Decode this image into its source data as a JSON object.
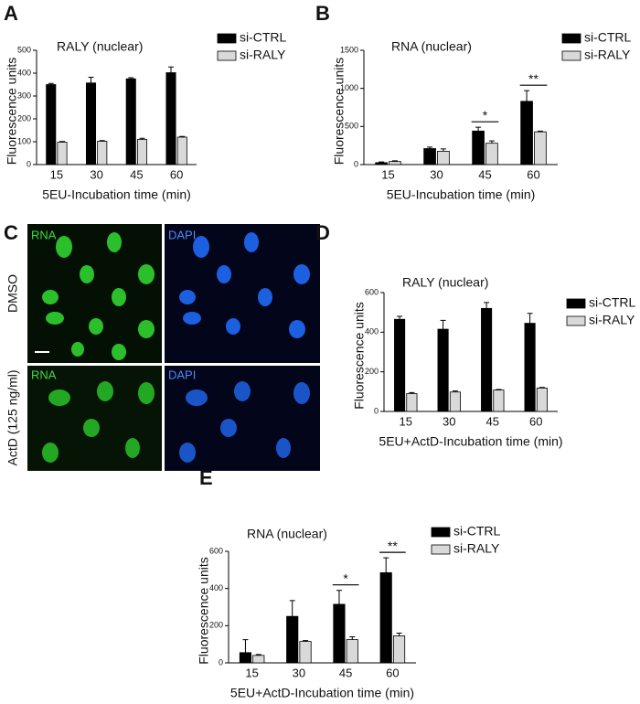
{
  "chart_data": [
    {
      "type": "bar",
      "panel": "A",
      "title": "RALY (nuclear)",
      "ylabel": "Fluorescence units",
      "xlabel": "5EU-Incubation time (min)",
      "categories": [
        "15",
        "30",
        "45",
        "60"
      ],
      "series": [
        {
          "name": "si-CTRL",
          "color": "#000000",
          "values": [
            350,
            357,
            375,
            402
          ],
          "errors": [
            5,
            25,
            5,
            25
          ]
        },
        {
          "name": "si-RALY",
          "color": "#d9d9d9",
          "values": [
            98,
            102,
            110,
            120
          ],
          "errors": [
            3,
            3,
            5,
            3
          ]
        }
      ],
      "ylim": [
        0,
        500
      ],
      "yticks": [
        0,
        100,
        200,
        300,
        400,
        500
      ],
      "annotations": []
    },
    {
      "type": "bar",
      "panel": "B",
      "title": "RNA (nuclear)",
      "ylabel": "Fluorescence units",
      "xlabel": "5EU-Incubation time (min)",
      "categories": [
        "15",
        "30",
        "45",
        "60"
      ],
      "series": [
        {
          "name": "si-CTRL",
          "color": "#000000",
          "values": [
            25,
            210,
            440,
            830
          ],
          "errors": [
            10,
            20,
            50,
            140
          ]
        },
        {
          "name": "si-RALY",
          "color": "#d9d9d9",
          "values": [
            40,
            175,
            280,
            430
          ],
          "errors": [
            10,
            30,
            30,
            10
          ]
        }
      ],
      "ylim": [
        0,
        1500
      ],
      "yticks": [
        0,
        500,
        1000,
        1500
      ],
      "annotations": [
        {
          "category": "45",
          "text": "*"
        },
        {
          "category": "60",
          "text": "**"
        }
      ]
    },
    {
      "type": "bar",
      "panel": "D",
      "title": "RALY (nuclear)",
      "ylabel": "Fluorescence units",
      "xlabel": "5EU+ActD-Incubation time (min)",
      "categories": [
        "15",
        "30",
        "45",
        "60"
      ],
      "series": [
        {
          "name": "si-CTRL",
          "color": "#000000",
          "values": [
            465,
            415,
            520,
            445
          ],
          "errors": [
            15,
            45,
            30,
            50
          ]
        },
        {
          "name": "si-RALY",
          "color": "#d9d9d9",
          "values": [
            90,
            98,
            108,
            118
          ],
          "errors": [
            5,
            5,
            3,
            3
          ]
        }
      ],
      "ylim": [
        0,
        600
      ],
      "yticks": [
        0,
        200,
        400,
        600
      ],
      "annotations": []
    },
    {
      "type": "bar",
      "panel": "E",
      "title": "RNA (nuclear)",
      "ylabel": "Fluorescence units",
      "xlabel": "5EU+ActD-Incubation time (min)",
      "categories": [
        "15",
        "30",
        "45",
        "60"
      ],
      "series": [
        {
          "name": "si-CTRL",
          "color": "#000000",
          "values": [
            55,
            250,
            315,
            485
          ],
          "errors": [
            70,
            85,
            75,
            80
          ]
        },
        {
          "name": "si-RALY",
          "color": "#d9d9d9",
          "values": [
            40,
            115,
            125,
            145
          ],
          "errors": [
            5,
            5,
            15,
            15
          ]
        }
      ],
      "ylim": [
        0,
        600
      ],
      "yticks": [
        0,
        200,
        400,
        600
      ],
      "annotations": [
        {
          "category": "45",
          "text": "*"
        },
        {
          "category": "60",
          "text": "**"
        }
      ]
    }
  ],
  "image_panel": {
    "panel": "C",
    "columns": [
      "RNA",
      "DAPI"
    ],
    "rows": [
      "DMSO",
      "ActD (125 ng/ml)"
    ]
  }
}
